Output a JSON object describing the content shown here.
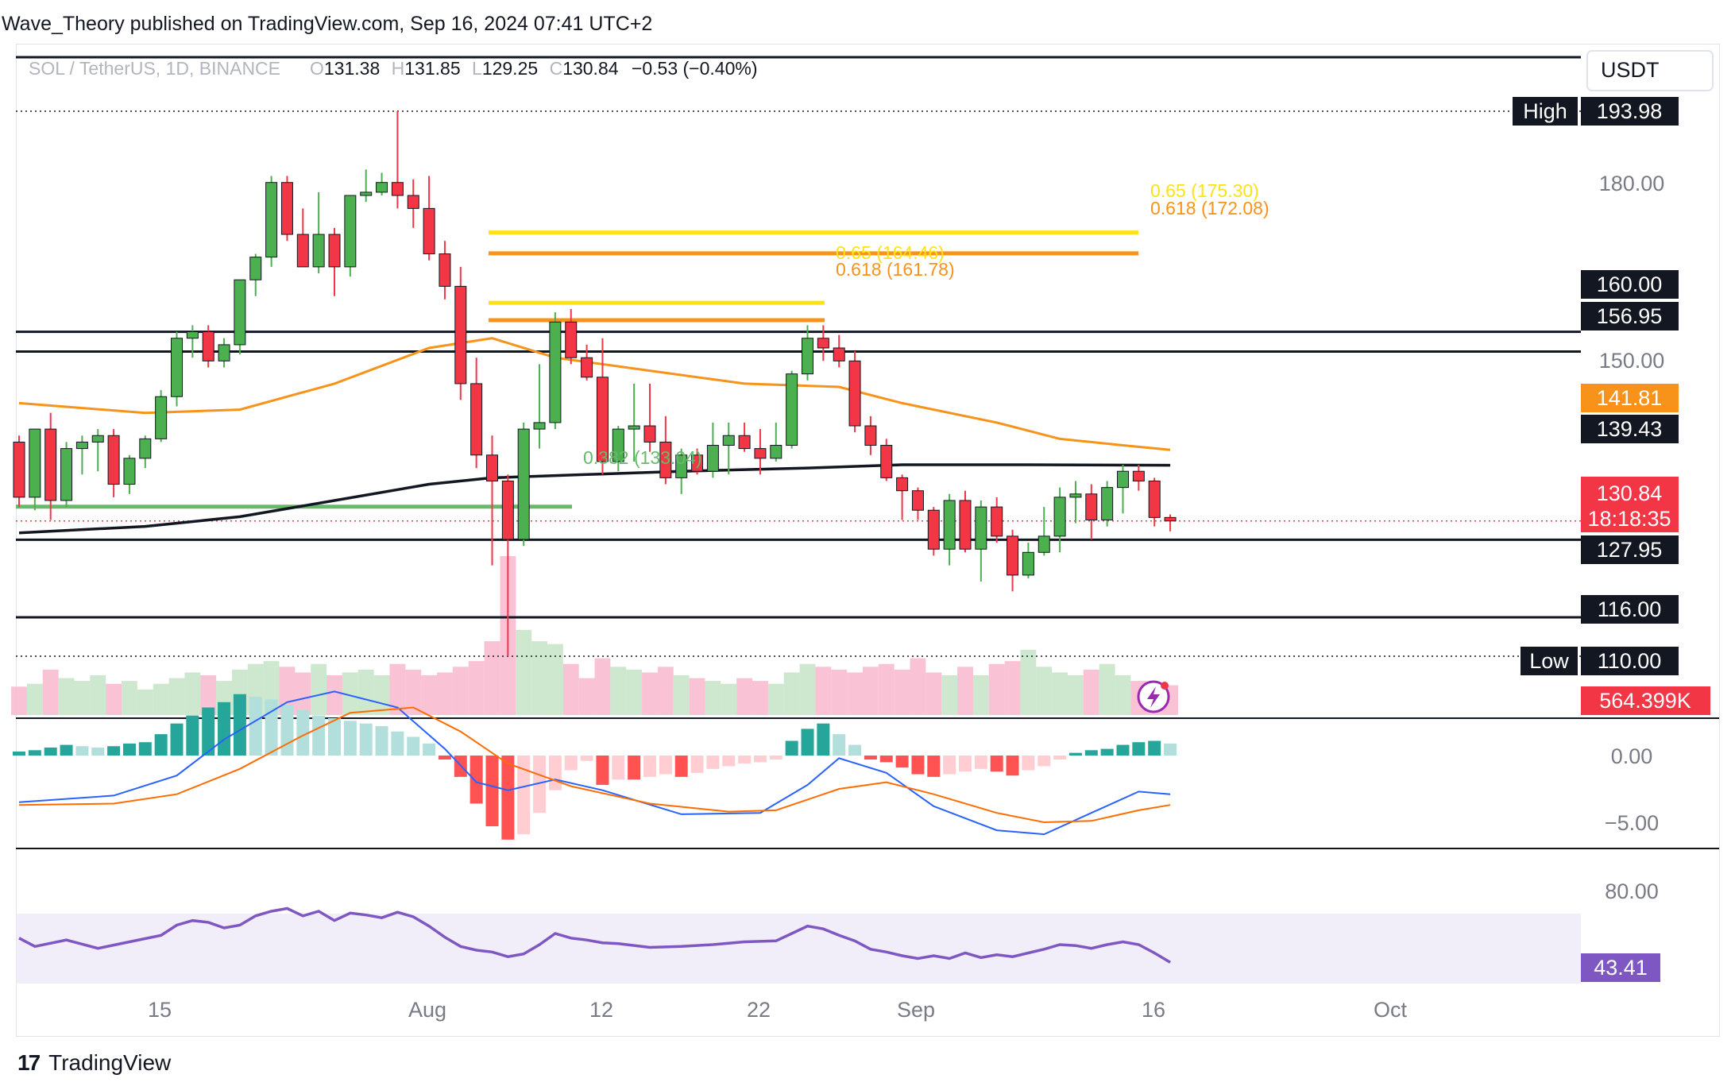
{
  "header": {
    "publisher": "Wave_Theory published on TradingView.com, Sep 16, 2024 07:41 UTC+2"
  },
  "footer": {
    "logo": "17",
    "brand": "TradingView"
  },
  "symbol_bar": {
    "symbol": "SOL / TetherUS, 1D, BINANCE",
    "open_label": "O",
    "open": "131.38",
    "high_label": "H",
    "high": "131.85",
    "low_label": "L",
    "low": "129.25",
    "close_label": "C",
    "close": "130.84",
    "change": "−0.53 (−0.40%)"
  },
  "currency_button": "USDT",
  "colors": {
    "up": "#26a69a",
    "up_candle": "#4caf50",
    "down": "#f23645",
    "ema50": "#f7931a",
    "sma200": "#131722",
    "fib_65": "#ffe11a",
    "fib_618": "#f7931a",
    "support": "#131722",
    "macd": "#2962ff",
    "signal": "#ff6d00",
    "rsi": "#7e57c2",
    "fib_382": "#66bb6a"
  },
  "axis": {
    "price_ticks": [
      "180.00",
      "150.00"
    ],
    "macd_ticks": [
      "0.00",
      "−5.00"
    ],
    "rsi_ticks": [
      "80.00"
    ],
    "time_ticks": [
      "15",
      "Aug",
      "12",
      "22",
      "Sep",
      "16",
      "Oct"
    ]
  },
  "price_tags": {
    "high_label": "High",
    "high": "193.98",
    "low_label": "Low",
    "low": "110.00",
    "levels": [
      "160.00",
      "156.95",
      "127.95",
      "116.00"
    ],
    "ema50": "141.81",
    "sma200": "139.43",
    "last_price": "130.84",
    "countdown": "18:18:35",
    "volume": "564.399K",
    "rsi": "43.41"
  },
  "fib_labels": {
    "upper_65": "0.65 (175.30)",
    "upper_618": "0.618 (172.08)",
    "lower_65": "0.65 (164.46)",
    "lower_618": "0.618 (161.78)",
    "retrace_382": "0.382 (133.04)"
  },
  "chart_data": {
    "type": "candlestick",
    "symbol": "SOL / TetherUS",
    "interval": "1D",
    "exchange": "BINANCE",
    "x_ticks": [
      "15",
      "Aug",
      "12",
      "22",
      "Sep",
      "16",
      "Oct"
    ],
    "ylim": [
      104,
      198
    ],
    "candles": [
      {
        "o": 143.0,
        "h": 144.0,
        "l": 133.0,
        "c": 134.5
      },
      {
        "o": 134.5,
        "h": 145.0,
        "l": 132.5,
        "c": 145.0
      },
      {
        "o": 145.0,
        "h": 147.5,
        "l": 131.0,
        "c": 134.0
      },
      {
        "o": 134.0,
        "h": 143.0,
        "l": 133.0,
        "c": 142.0
      },
      {
        "o": 142.0,
        "h": 144.0,
        "l": 138.0,
        "c": 143.0
      },
      {
        "o": 143.0,
        "h": 145.0,
        "l": 138.5,
        "c": 144.0
      },
      {
        "o": 144.0,
        "h": 145.0,
        "l": 134.5,
        "c": 136.5
      },
      {
        "o": 136.5,
        "h": 141.0,
        "l": 135.0,
        "c": 140.5
      },
      {
        "o": 140.5,
        "h": 144.0,
        "l": 139.0,
        "c": 143.5
      },
      {
        "o": 143.5,
        "h": 151.0,
        "l": 143.0,
        "c": 150.0
      },
      {
        "o": 150.0,
        "h": 160.0,
        "l": 148.5,
        "c": 159.0
      },
      {
        "o": 159.0,
        "h": 161.0,
        "l": 156.0,
        "c": 160.0
      },
      {
        "o": 160.0,
        "h": 161.0,
        "l": 154.5,
        "c": 155.5
      },
      {
        "o": 155.5,
        "h": 159.0,
        "l": 154.5,
        "c": 158.0
      },
      {
        "o": 158.0,
        "h": 168.0,
        "l": 156.5,
        "c": 168.0
      },
      {
        "o": 168.0,
        "h": 172.0,
        "l": 165.5,
        "c": 171.5
      },
      {
        "o": 171.5,
        "h": 184.0,
        "l": 170.0,
        "c": 183.0
      },
      {
        "o": 183.0,
        "h": 184.0,
        "l": 174.0,
        "c": 175.0
      },
      {
        "o": 175.0,
        "h": 179.0,
        "l": 170.0,
        "c": 170.0
      },
      {
        "o": 170.0,
        "h": 181.5,
        "l": 169.0,
        "c": 175.0
      },
      {
        "o": 175.0,
        "h": 176.0,
        "l": 165.5,
        "c": 170.0
      },
      {
        "o": 170.0,
        "h": 181.0,
        "l": 168.5,
        "c": 181.0
      },
      {
        "o": 181.0,
        "h": 185.0,
        "l": 180.0,
        "c": 181.5
      },
      {
        "o": 181.5,
        "h": 184.5,
        "l": 181.0,
        "c": 183.0
      },
      {
        "o": 183.0,
        "h": 193.98,
        "l": 179.0,
        "c": 181.0
      },
      {
        "o": 181.0,
        "h": 183.5,
        "l": 176.0,
        "c": 179.0
      },
      {
        "o": 179.0,
        "h": 184.0,
        "l": 171.0,
        "c": 172.0
      },
      {
        "o": 172.0,
        "h": 174.0,
        "l": 165.0,
        "c": 167.0
      },
      {
        "o": 167.0,
        "h": 170.0,
        "l": 149.5,
        "c": 152.0
      },
      {
        "o": 152.0,
        "h": 156.0,
        "l": 139.0,
        "c": 141.0
      },
      {
        "o": 141.0,
        "h": 144.0,
        "l": 124.0,
        "c": 137.0
      },
      {
        "o": 137.0,
        "h": 138.0,
        "l": 110.0,
        "c": 128.0
      },
      {
        "o": 128.0,
        "h": 146.0,
        "l": 127.0,
        "c": 145.0
      },
      {
        "o": 145.0,
        "h": 155.0,
        "l": 142.0,
        "c": 146.0
      },
      {
        "o": 146.0,
        "h": 163.0,
        "l": 145.0,
        "c": 161.5
      },
      {
        "o": 161.5,
        "h": 163.5,
        "l": 155.0,
        "c": 156.0
      },
      {
        "o": 156.0,
        "h": 158.0,
        "l": 152.5,
        "c": 153.0
      },
      {
        "o": 153.0,
        "h": 159.0,
        "l": 138.0,
        "c": 140.0
      },
      {
        "o": 140.0,
        "h": 145.5,
        "l": 138.5,
        "c": 145.0
      },
      {
        "o": 145.0,
        "h": 152.0,
        "l": 140.0,
        "c": 145.5
      },
      {
        "o": 145.5,
        "h": 152.0,
        "l": 141.5,
        "c": 143.0
      },
      {
        "o": 143.0,
        "h": 147.0,
        "l": 136.5,
        "c": 137.5
      },
      {
        "o": 137.5,
        "h": 142.0,
        "l": 135.0,
        "c": 141.0
      },
      {
        "o": 141.0,
        "h": 142.0,
        "l": 138.0,
        "c": 138.5
      },
      {
        "o": 138.5,
        "h": 146.0,
        "l": 137.5,
        "c": 142.5
      },
      {
        "o": 142.5,
        "h": 146.0,
        "l": 138.0,
        "c": 144.0
      },
      {
        "o": 144.0,
        "h": 146.0,
        "l": 141.5,
        "c": 142.0
      },
      {
        "o": 142.0,
        "h": 145.0,
        "l": 138.0,
        "c": 140.5
      },
      {
        "o": 140.5,
        "h": 146.0,
        "l": 140.0,
        "c": 142.5
      },
      {
        "o": 142.5,
        "h": 154.0,
        "l": 142.0,
        "c": 153.5
      },
      {
        "o": 153.5,
        "h": 161.0,
        "l": 152.5,
        "c": 159.0
      },
      {
        "o": 159.0,
        "h": 161.0,
        "l": 155.5,
        "c": 157.5
      },
      {
        "o": 157.5,
        "h": 159.5,
        "l": 154.5,
        "c": 155.5
      },
      {
        "o": 155.5,
        "h": 157.0,
        "l": 144.5,
        "c": 145.5
      },
      {
        "o": 145.5,
        "h": 147.0,
        "l": 141.0,
        "c": 142.5
      },
      {
        "o": 142.5,
        "h": 143.5,
        "l": 137.0,
        "c": 137.5
      },
      {
        "o": 137.5,
        "h": 138.0,
        "l": 131.0,
        "c": 135.5
      },
      {
        "o": 135.5,
        "h": 136.0,
        "l": 131.0,
        "c": 132.5
      },
      {
        "o": 132.5,
        "h": 133.0,
        "l": 125.5,
        "c": 126.5
      },
      {
        "o": 126.5,
        "h": 135.0,
        "l": 124.0,
        "c": 134.0
      },
      {
        "o": 134.0,
        "h": 135.5,
        "l": 126.0,
        "c": 126.5
      },
      {
        "o": 126.5,
        "h": 134.0,
        "l": 121.5,
        "c": 133.0
      },
      {
        "o": 133.0,
        "h": 134.5,
        "l": 127.5,
        "c": 128.5
      },
      {
        "o": 128.5,
        "h": 129.5,
        "l": 120.0,
        "c": 122.5
      },
      {
        "o": 122.5,
        "h": 127.5,
        "l": 122.0,
        "c": 126.0
      },
      {
        "o": 126.0,
        "h": 133.0,
        "l": 125.5,
        "c": 128.5
      },
      {
        "o": 128.5,
        "h": 136.0,
        "l": 126.0,
        "c": 134.5
      },
      {
        "o": 134.5,
        "h": 137.0,
        "l": 130.5,
        "c": 135.0
      },
      {
        "o": 135.0,
        "h": 136.5,
        "l": 128.0,
        "c": 131.0
      },
      {
        "o": 131.0,
        "h": 137.0,
        "l": 130.0,
        "c": 136.0
      },
      {
        "o": 136.0,
        "h": 139.5,
        "l": 132.0,
        "c": 138.5
      },
      {
        "o": 138.5,
        "h": 139.5,
        "l": 135.5,
        "c": 137.0
      },
      {
        "o": 137.0,
        "h": 137.5,
        "l": 130.0,
        "c": 131.38
      },
      {
        "o": 131.38,
        "h": 131.85,
        "l": 129.25,
        "c": 130.84
      }
    ],
    "ema50": [
      [
        0,
        149.0
      ],
      [
        8,
        147.5
      ],
      [
        14,
        148.0
      ],
      [
        20,
        152.0
      ],
      [
        26,
        157.5
      ],
      [
        30,
        159.0
      ],
      [
        34,
        156.0
      ],
      [
        40,
        154.0
      ],
      [
        46,
        152.0
      ],
      [
        52,
        151.5
      ],
      [
        56,
        149.0
      ],
      [
        62,
        146.0
      ],
      [
        66,
        143.5
      ],
      [
        70,
        142.5
      ],
      [
        73,
        141.81
      ]
    ],
    "sma200": [
      [
        0,
        129.0
      ],
      [
        8,
        130.0
      ],
      [
        14,
        131.5
      ],
      [
        20,
        134.0
      ],
      [
        26,
        136.5
      ],
      [
        30,
        137.5
      ],
      [
        36,
        138.0
      ],
      [
        42,
        138.5
      ],
      [
        50,
        139.0
      ],
      [
        56,
        139.5
      ],
      [
        64,
        139.5
      ],
      [
        73,
        139.43
      ]
    ],
    "horizontal_levels": [
      160.0,
      156.95,
      127.95,
      116.0
    ],
    "fibonacci": [
      {
        "label": "0.65 (175.30)",
        "value": 175.3,
        "from": 29,
        "to": 71
      },
      {
        "label": "0.618 (172.08)",
        "value": 172.08,
        "from": 29,
        "to": 71
      },
      {
        "label": "0.65 (164.46)",
        "value": 164.46,
        "from": 29,
        "to": 50
      },
      {
        "label": "0.618 (161.78)",
        "value": 161.78,
        "from": 29,
        "to": 52
      },
      {
        "label": "0.382 (133.04)",
        "value": 133.04,
        "from": 0,
        "to": 34
      }
    ],
    "volume": [
      100,
      110,
      160,
      130,
      120,
      140,
      110,
      120,
      90,
      110,
      130,
      150,
      140,
      120,
      160,
      180,
      190,
      170,
      150,
      180,
      140,
      150,
      160,
      140,
      180,
      160,
      140,
      150,
      170,
      190,
      260,
      560,
      300,
      260,
      250,
      180,
      130,
      200,
      170,
      160,
      150,
      170,
      140,
      130,
      120,
      110,
      130,
      120,
      110,
      150,
      180,
      170,
      160,
      150,
      170,
      180,
      160,
      200,
      150,
      140,
      170,
      140,
      180,
      190,
      230,
      170,
      150,
      140,
      160,
      180,
      140,
      120,
      110,
      105
    ],
    "volume_value": "564.399K",
    "macd": {
      "histogram": [
        0.3,
        0.4,
        0.6,
        0.8,
        0.7,
        0.6,
        0.7,
        0.9,
        1.0,
        1.6,
        2.4,
        3.0,
        3.6,
        4.0,
        4.6,
        4.4,
        4.2,
        3.8,
        3.4,
        3.0,
        2.8,
        2.6,
        2.4,
        2.2,
        1.8,
        1.4,
        0.9,
        -0.3,
        -1.6,
        -3.6,
        -5.3,
        -6.3,
        -5.9,
        -4.3,
        -2.6,
        -1.1,
        -0.4,
        -2.2,
        -1.8,
        -1.8,
        -1.6,
        -1.4,
        -1.6,
        -1.3,
        -1.0,
        -0.8,
        -0.6,
        -0.5,
        -0.3,
        1.1,
        2.0,
        2.4,
        1.6,
        0.8,
        -0.3,
        -0.5,
        -0.9,
        -1.4,
        -1.6,
        -1.4,
        -1.2,
        -1.0,
        -1.2,
        -1.5,
        -1.1,
        -0.8,
        -0.3,
        0.2,
        0.4,
        0.5,
        0.8,
        1.0,
        1.1,
        0.9
      ],
      "macd_line": [
        [
          0,
          -3.5
        ],
        [
          6,
          -3.0
        ],
        [
          10,
          -1.5
        ],
        [
          13,
          1.2
        ],
        [
          17,
          4.0
        ],
        [
          20,
          4.8
        ],
        [
          24,
          3.6
        ],
        [
          27,
          0.5
        ],
        [
          29,
          -2.0
        ],
        [
          31,
          -2.6
        ],
        [
          34,
          -1.8
        ],
        [
          37,
          -2.6
        ],
        [
          42,
          -4.4
        ],
        [
          47,
          -4.3
        ],
        [
          50,
          -2.2
        ],
        [
          52,
          -0.2
        ],
        [
          55,
          -1.3
        ],
        [
          58,
          -3.8
        ],
        [
          62,
          -5.6
        ],
        [
          65,
          -5.9
        ],
        [
          68,
          -4.3
        ],
        [
          71,
          -2.7
        ],
        [
          73,
          -2.9
        ]
      ],
      "signal_line": [
        [
          0,
          -3.7
        ],
        [
          6,
          -3.6
        ],
        [
          10,
          -2.9
        ],
        [
          14,
          -1.0
        ],
        [
          18,
          1.5
        ],
        [
          21,
          3.2
        ],
        [
          25,
          3.6
        ],
        [
          28,
          1.8
        ],
        [
          31,
          -0.6
        ],
        [
          35,
          -2.3
        ],
        [
          40,
          -3.6
        ],
        [
          45,
          -4.2
        ],
        [
          48,
          -4.1
        ],
        [
          52,
          -2.5
        ],
        [
          55,
          -2.0
        ],
        [
          58,
          -2.9
        ],
        [
          62,
          -4.3
        ],
        [
          65,
          -5.0
        ],
        [
          68,
          -4.9
        ],
        [
          71,
          -4.1
        ],
        [
          73,
          -3.7
        ]
      ],
      "ticks": [
        "0.00",
        "−5.00"
      ]
    },
    "rsi": {
      "values": [
        [
          0,
          56.5
        ],
        [
          1,
          52.0
        ],
        [
          3,
          55.5
        ],
        [
          5,
          51.0
        ],
        [
          7,
          54.5
        ],
        [
          9,
          58.0
        ],
        [
          10,
          63.5
        ],
        [
          11,
          66.0
        ],
        [
          12,
          65.0
        ],
        [
          13,
          62.0
        ],
        [
          14,
          63.5
        ],
        [
          15,
          68.5
        ],
        [
          16,
          71.0
        ],
        [
          17,
          72.5
        ],
        [
          18,
          68.5
        ],
        [
          19,
          71.0
        ],
        [
          20,
          66.0
        ],
        [
          21,
          70.0
        ],
        [
          22,
          69.0
        ],
        [
          23,
          67.5
        ],
        [
          24,
          70.5
        ],
        [
          25,
          68.0
        ],
        [
          26,
          63.0
        ],
        [
          27,
          57.0
        ],
        [
          28,
          52.0
        ],
        [
          29,
          50.0
        ],
        [
          30,
          49.0
        ],
        [
          31,
          46.5
        ],
        [
          32,
          48.0
        ],
        [
          33,
          53.0
        ],
        [
          34,
          59.0
        ],
        [
          35,
          56.5
        ],
        [
          36,
          55.5
        ],
        [
          37,
          54.0
        ],
        [
          38,
          53.5
        ],
        [
          40,
          51.5
        ],
        [
          42,
          52.0
        ],
        [
          44,
          53.0
        ],
        [
          46,
          54.5
        ],
        [
          48,
          55.0
        ],
        [
          49,
          59.0
        ],
        [
          50,
          63.0
        ],
        [
          51,
          61.5
        ],
        [
          52,
          58.0
        ],
        [
          53,
          55.0
        ],
        [
          54,
          50.5
        ],
        [
          55,
          49.0
        ],
        [
          56,
          47.0
        ],
        [
          57,
          45.5
        ],
        [
          58,
          47.0
        ],
        [
          59,
          45.5
        ],
        [
          60,
          48.5
        ],
        [
          61,
          46.0
        ],
        [
          62,
          47.5
        ],
        [
          63,
          46.5
        ],
        [
          64,
          48.5
        ],
        [
          65,
          50.5
        ],
        [
          66,
          53.0
        ],
        [
          67,
          52.5
        ],
        [
          68,
          51.0
        ],
        [
          69,
          53.0
        ],
        [
          70,
          54.5
        ],
        [
          71,
          53.0
        ],
        [
          72,
          48.5
        ],
        [
          73,
          43.41
        ]
      ],
      "band": [
        30,
        70
      ],
      "value": "43.41",
      "ticks": [
        "80.00"
      ]
    }
  }
}
